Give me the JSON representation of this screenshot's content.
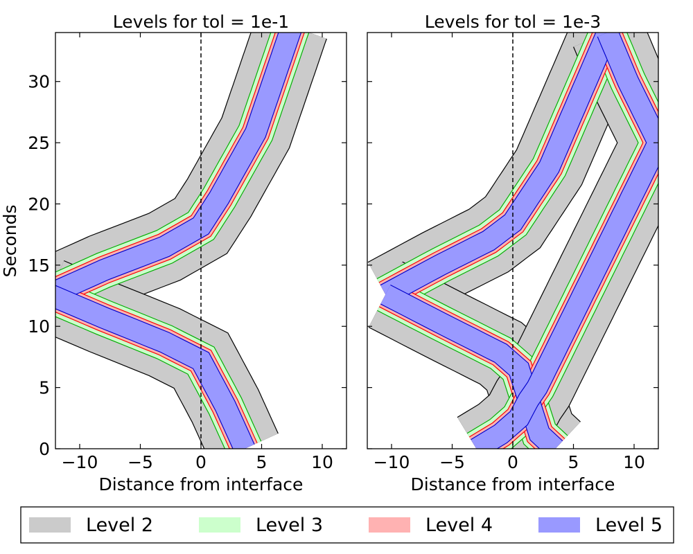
{
  "chart_data": [
    {
      "type": "area",
      "title": "Levels for tol = 1e-1",
      "xlabel": "Distance from interface",
      "ylabel": "Seconds",
      "xlim": [
        -12,
        12
      ],
      "ylim": [
        0,
        34
      ],
      "xticks": [
        -10,
        -5,
        0,
        5,
        10
      ],
      "xtick_labels": [
        "−10",
        "−5",
        "0",
        "5",
        "10"
      ],
      "yticks": [
        0,
        5,
        10,
        15,
        20,
        25,
        30
      ],
      "ytick_labels": [
        "0",
        "5",
        "10",
        "15",
        "20",
        "25",
        "30"
      ],
      "reference_line_x": 0,
      "interfaces": [
        [
          [
            -12.5,
            12.6
          ],
          [
            -8,
            14.6
          ],
          [
            -3,
            16.5
          ],
          [
            0,
            18.2
          ],
          [
            1.5,
            20.5
          ],
          [
            4.5,
            25.8
          ],
          [
            7.5,
            34.5
          ]
        ],
        [
          [
            -12.5,
            12.6
          ],
          [
            -8,
            10.7
          ],
          [
            -3,
            8.7
          ],
          [
            0,
            7.2
          ],
          [
            2,
            3.5
          ],
          [
            3.6,
            0
          ]
        ]
      ],
      "level_half_widths": {
        "Level 2": 3.0,
        "Level 3": 1.45,
        "Level 4": 1.1,
        "Level 5": 0.85
      }
    },
    {
      "type": "area",
      "title": "Levels for tol = 1e-3",
      "xlabel": "Distance from interface",
      "ylabel": "",
      "xlim": [
        -12,
        12
      ],
      "ylim": [
        0,
        34
      ],
      "xticks": [
        -10,
        -5,
        0,
        5,
        10
      ],
      "xtick_labels": [
        "−10",
        "−5",
        "0",
        "5",
        "10"
      ],
      "yticks": [
        0,
        5,
        10,
        15,
        20,
        25,
        30
      ],
      "reference_line_x": 0,
      "interfaces": [
        [
          [
            -10.5,
            12.6
          ],
          [
            -6,
            15
          ],
          [
            -2,
            17
          ],
          [
            0,
            18.5
          ],
          [
            3,
            23
          ],
          [
            7.8,
            34
          ]
        ],
        [
          [
            -10.5,
            12.6
          ],
          [
            -6,
            10.3
          ],
          [
            -1,
            7.8
          ],
          [
            0.5,
            6.5
          ],
          [
            1.3,
            4
          ],
          [
            2.2,
            1.2
          ],
          [
            3.5,
            0
          ]
        ],
        [
          [
            7.8,
            34
          ],
          [
            9.5,
            30
          ],
          [
            12,
            25
          ],
          [
            9.5,
            20
          ],
          [
            7,
            15
          ],
          [
            4.5,
            10
          ],
          [
            2,
            5
          ],
          [
            1.3,
            4
          ],
          [
            0.5,
            2.5
          ],
          [
            -1,
            1.2
          ],
          [
            -3,
            0
          ]
        ]
      ],
      "level_half_widths": {
        "Level 2": 3.0,
        "Level 3": 1.45,
        "Level 4": 1.1,
        "Level 5": 0.85
      }
    }
  ],
  "legend": {
    "placement": "bottom",
    "items": [
      {
        "label": "Level 2",
        "color": "#cbcbcb"
      },
      {
        "label": "Level 3",
        "color": "#ccffcc"
      },
      {
        "label": "Level 4",
        "color": "#ffb2b2"
      },
      {
        "label": "Level 5",
        "color": "#9999ff"
      }
    ]
  },
  "colors": {
    "level2_edge": "#000000",
    "level3_edge": "#00aa00",
    "level4_edge": "#ff0000",
    "level5_edge": "#0000cc",
    "axis": "#000000",
    "gap": "#ffffff"
  }
}
